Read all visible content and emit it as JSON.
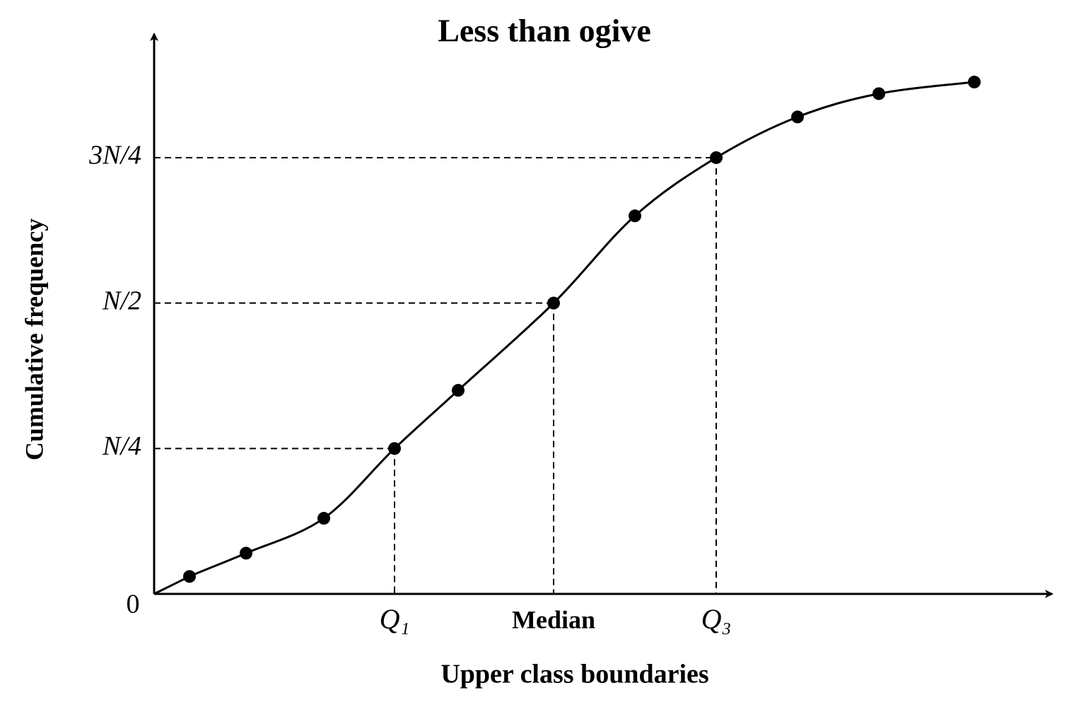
{
  "chart_data": {
    "type": "line",
    "title": "Less than ogive",
    "x_label": "Upper class boundaries",
    "y_label": "Cumulative frequency",
    "x": [
      0.5,
      1.3,
      2.4,
      3.4,
      4.3,
      5.65,
      6.8,
      7.95,
      9.1,
      10.25,
      11.6
    ],
    "values": [
      0.03,
      0.07,
      0.13,
      0.25,
      0.35,
      0.5,
      0.65,
      0.75,
      0.82,
      0.86,
      0.88
    ],
    "color": "#000000",
    "xlim": [
      0,
      12.7
    ],
    "ylim": [
      0,
      0.97
    ],
    "xticks": [
      {
        "value": 3.4,
        "label": "Q₁"
      },
      {
        "value": 5.65,
        "label": "Median"
      },
      {
        "value": 7.95,
        "label": "Q₃"
      }
    ],
    "yticks": [
      0,
      {
        "value": 0.25,
        "label": "N/4"
      },
      {
        "value": 0.5,
        "label": "N/2"
      },
      {
        "value": 0.75,
        "label": "3N/4"
      }
    ]
  }
}
